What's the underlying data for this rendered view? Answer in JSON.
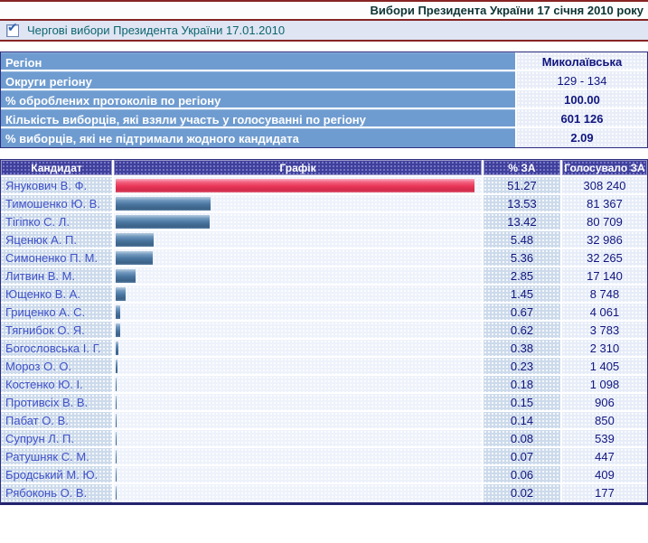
{
  "header": {
    "title": "Вибори Президента України 17 січня 2010 року"
  },
  "election_bar": {
    "checkbox_checked": true,
    "label": "Чергові вибори Президента України 17.01.2010"
  },
  "region_info": {
    "rows": [
      {
        "label": "Регіон",
        "value": "Миколаївська",
        "bold": true
      },
      {
        "label": "Округи регіону",
        "value": "129 - 134",
        "bold": false
      },
      {
        "label": "% оброблених протоколів по регіону",
        "value": "100.00",
        "bold": true
      },
      {
        "label": "Кількість виборців, які взяли участь у голосуванні по регіону",
        "value": "601 126",
        "bold": true
      },
      {
        "label": "% виборців, які не підтримали жодного кандидата",
        "value": "2.09",
        "bold": true
      }
    ]
  },
  "results": {
    "headers": {
      "candidate": "Кандидат",
      "graph": "Графік",
      "percent": "% ЗА",
      "votes": "Голосувало ЗА"
    },
    "bar_colors": {
      "leader": "#e93558",
      "default": "#49759f"
    },
    "rows": [
      {
        "candidate": "Янукович В. Ф.",
        "percent": "51.27",
        "votes": "308 240",
        "leader": true
      },
      {
        "candidate": "Тимошенко Ю. В.",
        "percent": "13.53",
        "votes": "81 367",
        "leader": false
      },
      {
        "candidate": "Тігіпко С. Л.",
        "percent": "13.42",
        "votes": "80 709",
        "leader": false
      },
      {
        "candidate": "Яценюк А. П.",
        "percent": "5.48",
        "votes": "32 986",
        "leader": false
      },
      {
        "candidate": "Симоненко П. М.",
        "percent": "5.36",
        "votes": "32 265",
        "leader": false
      },
      {
        "candidate": "Литвин В. М.",
        "percent": "2.85",
        "votes": "17 140",
        "leader": false
      },
      {
        "candidate": "Ющенко В. А.",
        "percent": "1.45",
        "votes": "8 748",
        "leader": false
      },
      {
        "candidate": "Гриценко А. С.",
        "percent": "0.67",
        "votes": "4 061",
        "leader": false
      },
      {
        "candidate": "Тягнибок О. Я.",
        "percent": "0.62",
        "votes": "3 783",
        "leader": false
      },
      {
        "candidate": "Богословська І. Г.",
        "percent": "0.38",
        "votes": "2 310",
        "leader": false
      },
      {
        "candidate": "Мороз О. О.",
        "percent": "0.23",
        "votes": "1 405",
        "leader": false
      },
      {
        "candidate": "Костенко Ю. І.",
        "percent": "0.18",
        "votes": "1 098",
        "leader": false
      },
      {
        "candidate": "Противсіх В. В.",
        "percent": "0.15",
        "votes": "906",
        "leader": false
      },
      {
        "candidate": "Пабат О. В.",
        "percent": "0.14",
        "votes": "850",
        "leader": false
      },
      {
        "candidate": "Супрун Л. П.",
        "percent": "0.08",
        "votes": "539",
        "leader": false
      },
      {
        "candidate": "Ратушняк С. М.",
        "percent": "0.07",
        "votes": "447",
        "leader": false
      },
      {
        "candidate": "Бродський М. Ю.",
        "percent": "0.06",
        "votes": "409",
        "leader": false
      },
      {
        "candidate": "Рябоконь О. В.",
        "percent": "0.02",
        "votes": "177",
        "leader": false
      }
    ]
  }
}
